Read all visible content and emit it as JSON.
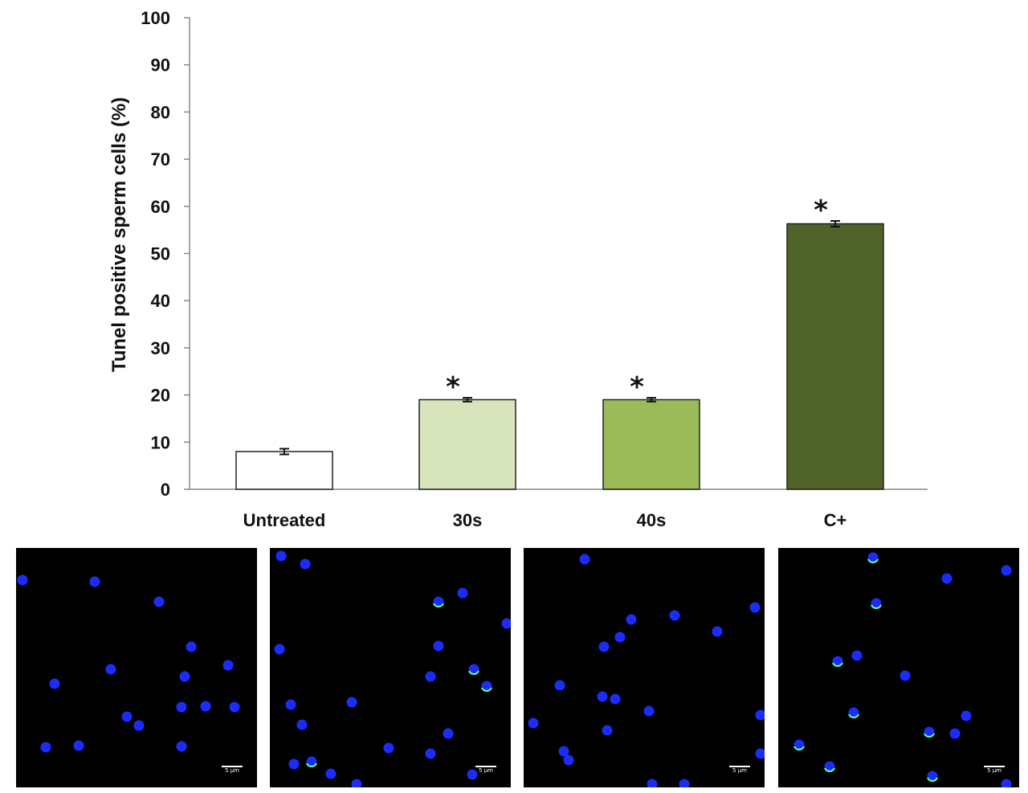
{
  "chart_data": {
    "type": "bar",
    "title": "",
    "xlabel": "",
    "ylabel": "Tunel positive sperm cells (%)",
    "ylim": [
      0,
      100
    ],
    "yticks": [
      0,
      10,
      20,
      30,
      40,
      50,
      60,
      70,
      80,
      90,
      100
    ],
    "categories": [
      "Untreated",
      "30s",
      "40s",
      "C+"
    ],
    "values": [
      8,
      19,
      19,
      56.3
    ],
    "errors": [
      0.6,
      0.4,
      0.4,
      0.6
    ],
    "significance": [
      "",
      "*",
      "*",
      "*"
    ],
    "bar_colors": [
      "#ffffff",
      "#d8e4bc",
      "#9bbb59",
      "#4f6228"
    ],
    "grid": false,
    "legend": "none"
  },
  "panels": [
    {
      "name": "Untreated",
      "scale_label": "5 µm",
      "cells": [
        [
          8,
          40,
          0
        ],
        [
          98,
          42,
          0
        ],
        [
          178,
          67,
          0
        ],
        [
          218,
          123,
          0
        ],
        [
          264,
          146,
          0
        ],
        [
          118,
          151,
          0
        ],
        [
          48,
          169,
          0
        ],
        [
          210,
          160,
          0
        ],
        [
          138,
          210,
          0
        ],
        [
          153,
          221,
          0
        ],
        [
          206,
          198,
          0
        ],
        [
          236,
          197,
          0
        ],
        [
          272,
          198,
          0
        ],
        [
          37,
          248,
          0
        ],
        [
          78,
          246,
          0
        ],
        [
          206,
          247,
          0
        ]
      ]
    },
    {
      "name": "30s",
      "scale_label": "5 µm",
      "cells": [
        [
          14,
          10,
          0
        ],
        [
          44,
          20,
          0
        ],
        [
          210,
          67,
          1
        ],
        [
          240,
          56,
          0
        ],
        [
          295,
          94,
          0
        ],
        [
          12,
          126,
          0
        ],
        [
          210,
          122,
          0
        ],
        [
          254,
          151,
          1
        ],
        [
          200,
          160,
          0
        ],
        [
          270,
          172,
          1
        ],
        [
          26,
          195,
          0
        ],
        [
          102,
          192,
          0
        ],
        [
          40,
          220,
          0
        ],
        [
          222,
          231,
          0
        ],
        [
          148,
          249,
          0
        ],
        [
          200,
          256,
          0
        ],
        [
          30,
          269,
          0
        ],
        [
          52,
          266,
          1
        ],
        [
          76,
          281,
          0
        ],
        [
          108,
          294,
          0
        ],
        [
          252,
          282,
          0
        ]
      ]
    },
    {
      "name": "40s",
      "scale_label": "5 µm",
      "cells": [
        [
          76,
          14,
          0
        ],
        [
          288,
          74,
          0
        ],
        [
          188,
          84,
          0
        ],
        [
          134,
          89,
          0
        ],
        [
          120,
          111,
          0
        ],
        [
          100,
          123,
          0
        ],
        [
          241,
          104,
          0
        ],
        [
          45,
          171,
          0
        ],
        [
          98,
          185,
          0
        ],
        [
          114,
          188,
          0
        ],
        [
          156,
          203,
          0
        ],
        [
          12,
          218,
          0
        ],
        [
          295,
          208,
          0
        ],
        [
          104,
          227,
          0
        ],
        [
          50,
          253,
          0
        ],
        [
          56,
          264,
          0
        ],
        [
          295,
          256,
          0
        ],
        [
          160,
          294,
          0
        ],
        [
          200,
          294,
          0
        ]
      ]
    },
    {
      "name": "C+",
      "scale_label": "5 µm",
      "cells": [
        [
          118,
          12,
          1
        ],
        [
          284,
          28,
          0
        ],
        [
          210,
          38,
          0
        ],
        [
          122,
          69,
          1
        ],
        [
          74,
          141,
          1
        ],
        [
          98,
          134,
          0
        ],
        [
          158,
          159,
          0
        ],
        [
          94,
          205,
          1
        ],
        [
          234,
          209,
          0
        ],
        [
          188,
          229,
          1
        ],
        [
          220,
          231,
          0
        ],
        [
          26,
          245,
          1
        ],
        [
          64,
          272,
          1
        ],
        [
          192,
          284,
          1
        ],
        [
          284,
          294,
          0
        ]
      ]
    }
  ]
}
